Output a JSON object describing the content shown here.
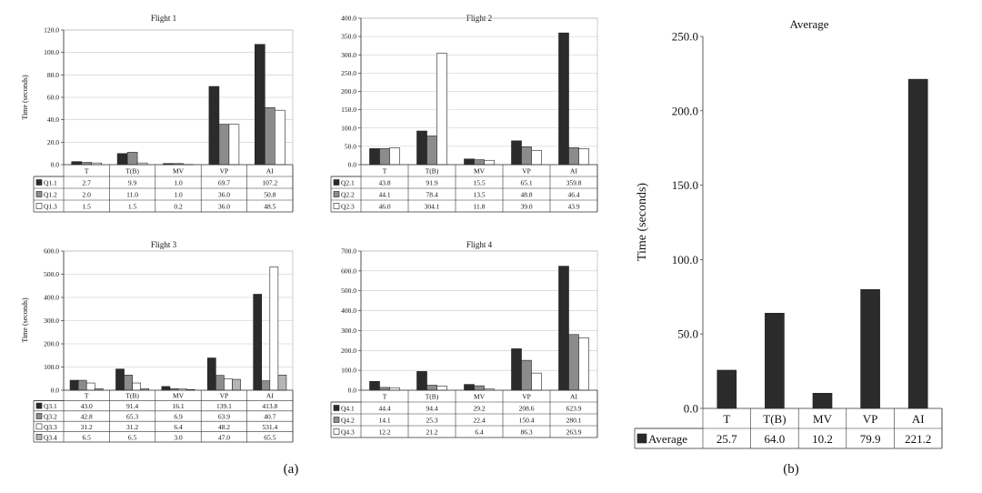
{
  "figure": {
    "caption_a": "(a)",
    "caption_b": "(b)"
  },
  "chart_data": [
    {
      "type": "bar",
      "title": "Flight 1",
      "ylabel": "Time (seconds)",
      "ylim": [
        0,
        120
      ],
      "yticks": [
        "0.0",
        "20.0",
        "40.0",
        "60.0",
        "80.0",
        "100.0",
        "120.0"
      ],
      "categories": [
        "T",
        "T(B)",
        "MV",
        "VP",
        "AI"
      ],
      "series": [
        {
          "name": "Q1.1",
          "values": [
            2.7,
            9.9,
            1.0,
            69.7,
            107.2
          ],
          "labels": [
            "2.7",
            "9.9",
            "1.0",
            "69.7",
            "107.2"
          ],
          "color": "#2b2b2b"
        },
        {
          "name": "Q1.2",
          "values": [
            2.0,
            11.0,
            1.0,
            36.0,
            50.8
          ],
          "labels": [
            "2.0",
            "11.0",
            "1.0",
            "36.0",
            "50.8"
          ],
          "color": "#8c8c8c"
        },
        {
          "name": "Q1.3",
          "values": [
            1.5,
            1.5,
            0.2,
            36.0,
            48.5
          ],
          "labels": [
            "1.5",
            "1.5",
            "0.2",
            "36.0",
            "48.5"
          ],
          "color": "#ffffff"
        }
      ]
    },
    {
      "type": "bar",
      "title": "Flight 2",
      "ylabel": "",
      "ylim": [
        0,
        400
      ],
      "yticks": [
        "0.0",
        "50.0",
        "100.0",
        "150.0",
        "200.0",
        "250.0",
        "300.0",
        "350.0",
        "400.0"
      ],
      "categories": [
        "T",
        "T(B)",
        "MV",
        "VP",
        "AI"
      ],
      "series": [
        {
          "name": "Q2.1",
          "values": [
            43.8,
            91.9,
            15.5,
            65.1,
            359.8
          ],
          "labels": [
            "43.8",
            "91.9",
            "15.5",
            "65.1",
            "359.8"
          ],
          "color": "#2b2b2b"
        },
        {
          "name": "Q2.2",
          "values": [
            44.1,
            78.4,
            13.5,
            48.8,
            46.4
          ],
          "labels": [
            "44.1",
            "78.4",
            "13.5",
            "48.8",
            "46.4"
          ],
          "color": "#8c8c8c"
        },
        {
          "name": "Q2.3",
          "values": [
            46.0,
            304.1,
            11.8,
            39.0,
            43.9
          ],
          "labels": [
            "46.0",
            "304.1",
            "11.8",
            "39.0",
            "43.9"
          ],
          "color": "#ffffff"
        }
      ]
    },
    {
      "type": "bar",
      "title": "Flight 3",
      "ylabel": "Time (seconds)",
      "ylim": [
        0,
        600
      ],
      "yticks": [
        "0.0",
        "100.0",
        "200.0",
        "300.0",
        "400.0",
        "500.0",
        "600.0"
      ],
      "categories": [
        "T",
        "T(B)",
        "MV",
        "VP",
        "AI"
      ],
      "series": [
        {
          "name": "Q3.1",
          "values": [
            43.0,
            91.4,
            16.1,
            139.1,
            413.8
          ],
          "labels": [
            "43.0",
            "91.4",
            "16.1",
            "139.1",
            "413.8"
          ],
          "color": "#2b2b2b"
        },
        {
          "name": "Q3.2",
          "values": [
            42.8,
            65.3,
            6.9,
            63.9,
            40.7
          ],
          "labels": [
            "42.8",
            "65.3",
            "6.9",
            "63.9",
            "40.7"
          ],
          "color": "#8c8c8c"
        },
        {
          "name": "Q3.3",
          "values": [
            31.2,
            31.2,
            6.4,
            48.2,
            531.4
          ],
          "labels": [
            "31.2",
            "31.2",
            "6.4",
            "48.2",
            "531.4"
          ],
          "color": "#ffffff"
        },
        {
          "name": "Q3.4",
          "values": [
            6.5,
            6.5,
            3.0,
            47.0,
            65.5
          ],
          "labels": [
            "6.5",
            "6.5",
            "3.0",
            "47.0",
            "65.5"
          ],
          "color": "#b5b5b5"
        }
      ]
    },
    {
      "type": "bar",
      "title": "Flight 4",
      "ylabel": "",
      "ylim": [
        0,
        700
      ],
      "yticks": [
        "0.0",
        "100.0",
        "200.0",
        "300.0",
        "400.0",
        "500.0",
        "600.0",
        "700.0"
      ],
      "categories": [
        "T",
        "T(B)",
        "MV",
        "VP",
        "AI"
      ],
      "series": [
        {
          "name": "Q4.1",
          "values": [
            44.4,
            94.4,
            29.2,
            208.6,
            623.9
          ],
          "labels": [
            "44.4",
            "94.4",
            "29.2",
            "208.6",
            "623.9"
          ],
          "color": "#2b2b2b"
        },
        {
          "name": "Q4.2",
          "values": [
            14.1,
            25.3,
            22.4,
            150.4,
            280.1
          ],
          "labels": [
            "14.1",
            "25.3",
            "22.4",
            "150.4",
            "280.1"
          ],
          "color": "#8c8c8c"
        },
        {
          "name": "Q4.3",
          "values": [
            12.2,
            21.2,
            6.4,
            86.3,
            263.9
          ],
          "labels": [
            "12.2",
            "21.2",
            "6.4",
            "86.3",
            "263.9"
          ],
          "color": "#ffffff"
        }
      ]
    },
    {
      "type": "bar",
      "title": "Average",
      "ylabel": "Time (seconds)",
      "ylim": [
        0,
        250
      ],
      "yticks": [
        "0.0",
        "50.0",
        "100.0",
        "150.0",
        "200.0",
        "250.0"
      ],
      "categories": [
        "T",
        "T(B)",
        "MV",
        "VP",
        "AI"
      ],
      "series": [
        {
          "name": "Average",
          "values": [
            25.7,
            64.0,
            10.2,
            79.9,
            221.2
          ],
          "labels": [
            "25.7",
            "64.0",
            "10.2",
            "79.9",
            "221.2"
          ],
          "color": "#2b2b2b"
        }
      ]
    }
  ]
}
